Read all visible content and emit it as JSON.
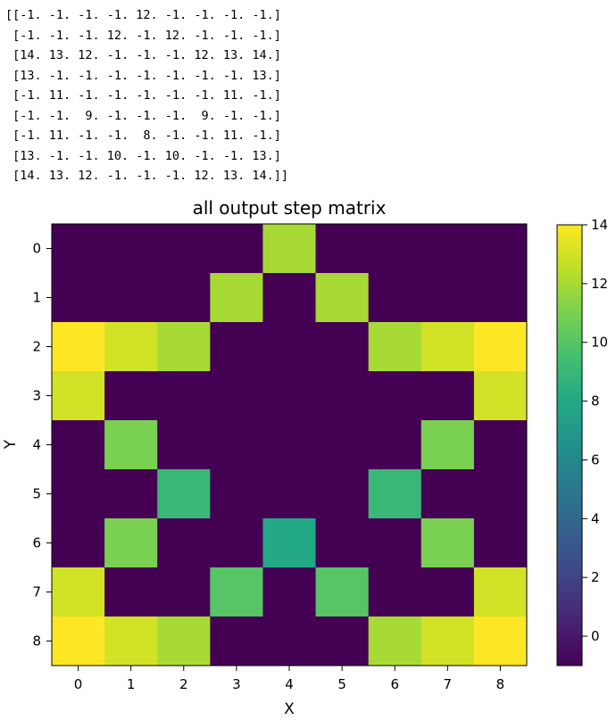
{
  "matrix_printout": [
    "[[-1. -1. -1. -1. 12. -1. -1. -1. -1.]",
    " [-1. -1. -1. 12. -1. 12. -1. -1. -1.]",
    " [14. 13. 12. -1. -1. -1. 12. 13. 14.]",
    " [13. -1. -1. -1. -1. -1. -1. -1. 13.]",
    " [-1. 11. -1. -1. -1. -1. -1. 11. -1.]",
    " [-1. -1.  9. -1. -1. -1.  9. -1. -1.]",
    " [-1. 11. -1. -1.  8. -1. -1. 11. -1.]",
    " [13. -1. -1. 10. -1. 10. -1. -1. 13.]",
    " [14. 13. 12. -1. -1. -1. 12. 13. 14.]]"
  ],
  "chart_data": {
    "type": "heatmap",
    "title": "all output step matrix",
    "xlabel": "X",
    "ylabel": "Y",
    "x_ticks": [
      "0",
      "1",
      "2",
      "3",
      "4",
      "5",
      "6",
      "7",
      "8"
    ],
    "y_ticks": [
      "0",
      "1",
      "2",
      "3",
      "4",
      "5",
      "6",
      "7",
      "8"
    ],
    "matrix": [
      [
        -1,
        -1,
        -1,
        -1,
        12,
        -1,
        -1,
        -1,
        -1
      ],
      [
        -1,
        -1,
        -1,
        12,
        -1,
        12,
        -1,
        -1,
        -1
      ],
      [
        14,
        13,
        12,
        -1,
        -1,
        -1,
        12,
        13,
        14
      ],
      [
        13,
        -1,
        -1,
        -1,
        -1,
        -1,
        -1,
        -1,
        13
      ],
      [
        -1,
        11,
        -1,
        -1,
        -1,
        -1,
        -1,
        11,
        -1
      ],
      [
        -1,
        -1,
        9,
        -1,
        -1,
        -1,
        9,
        -1,
        -1
      ],
      [
        -1,
        11,
        -1,
        -1,
        8,
        -1,
        -1,
        11,
        -1
      ],
      [
        13,
        -1,
        -1,
        10,
        -1,
        10,
        -1,
        -1,
        13
      ],
      [
        14,
        13,
        12,
        -1,
        -1,
        -1,
        12,
        13,
        14
      ]
    ],
    "colormap": "viridis",
    "vmin": -1,
    "vmax": 14,
    "colorbar_ticks": [
      "0",
      "2",
      "4",
      "6",
      "8",
      "10",
      "12",
      "14"
    ],
    "colorbar_tick_values": [
      0,
      2,
      4,
      6,
      8,
      10,
      12,
      14
    ],
    "grid": false
  }
}
